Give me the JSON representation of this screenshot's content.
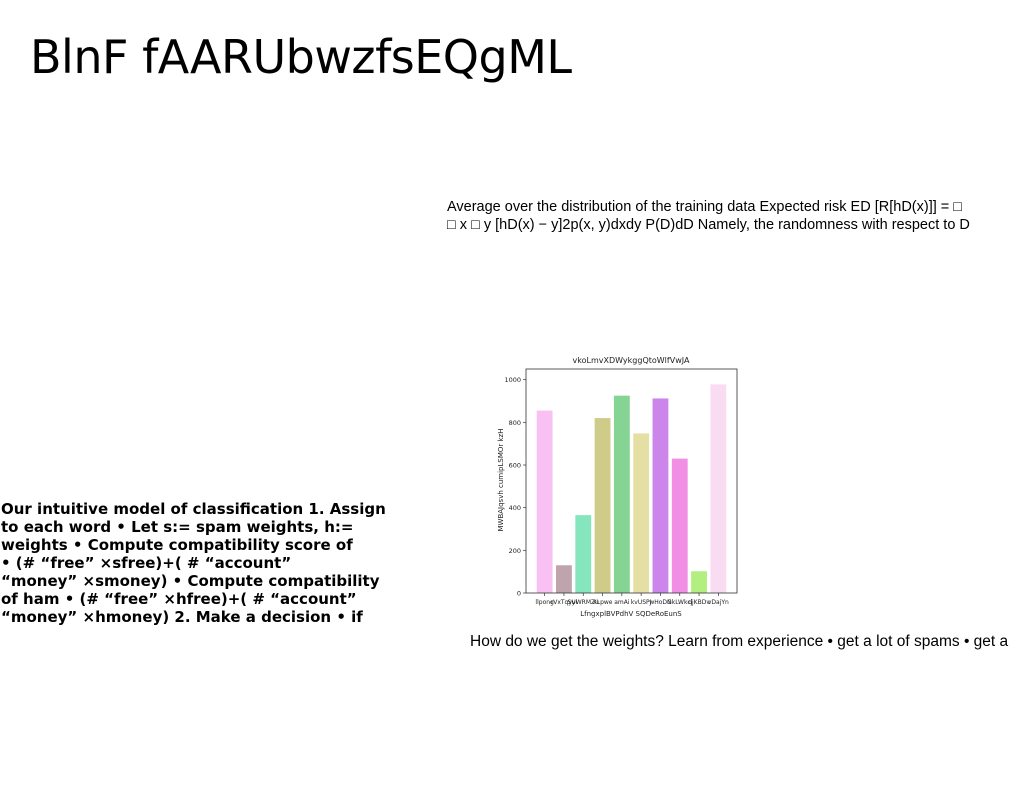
{
  "slide": {
    "title": "BlnF fAARUbwzfsEQgML"
  },
  "risk_paragraph": {
    "line1": "Average over the distribution of the training data Expected risk ED [R[hD(x)]] = □",
    "line2": "□ x □ y [hD(x) − y]2p(x, y)dxdy P(D)dD Namely, the randomness with respect to D"
  },
  "model_paragraph": {
    "lines": [
      "Our intuitive model of classification 1. Assign",
      "to each word • Let s:= spam weights, h:=",
      "weights • Compute compatibility score of",
      "• (# “free” ×sfree)+( # “account”",
      "“money” ×smoney) • Compute compatibility",
      "of ham • (# “free” ×hfree)+( # “account”",
      "“money” ×hmoney) 2. Make a decision • if"
    ]
  },
  "weights_paragraph": {
    "text": "How do we get the weights? Learn from experience • get a lot of spams • get a"
  },
  "chart_data": {
    "type": "bar",
    "title": "vkoLmvXDWykggQtoWlfVwJA",
    "xlabel": "LfngxplBVPdhV SQDeRoEunS",
    "ylabel": "MWBAJqsvh cumipLSMOr kzH",
    "categories": [
      "llpong",
      "rVxTqyyi",
      "SUWRMZu",
      "XLpwe",
      "amAi",
      "kvUSPJ",
      "wHoDN",
      "GkLWkcj",
      "djKBDv",
      "vDajYn"
    ],
    "values": [
      855,
      130,
      365,
      820,
      925,
      748,
      912,
      630,
      102,
      978
    ],
    "colors": [
      "#f9c0f3",
      "#bfa3ad",
      "#85e6bd",
      "#cfcc8a",
      "#86d493",
      "#e6dfa4",
      "#cc86eb",
      "#f18fe5",
      "#b2ee80",
      "#f9dcf1"
    ],
    "ylim": [
      0,
      1050
    ],
    "yticks": [
      0,
      200,
      400,
      600,
      800,
      1000
    ],
    "grid": false,
    "legend": "none"
  }
}
